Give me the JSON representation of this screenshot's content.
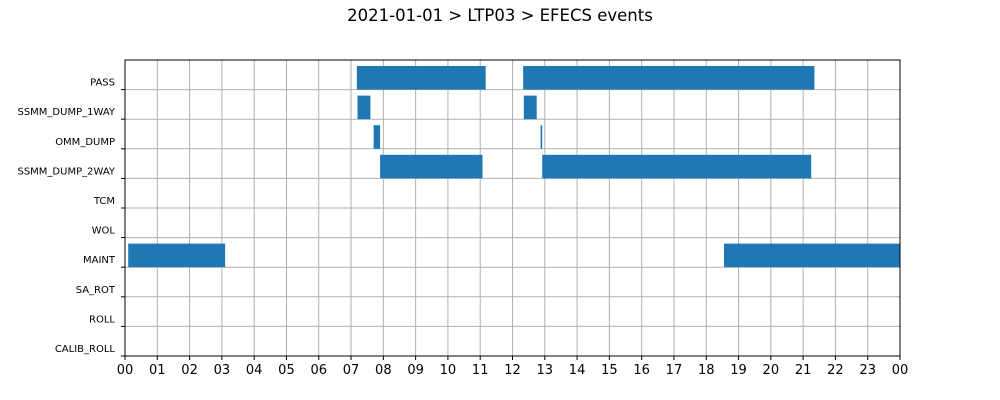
{
  "chart_data": {
    "type": "bar",
    "orientation": "horizontal-timeline",
    "title": "2021-01-01 > LTP03 > EFECS events",
    "xlabel": "",
    "ylabel": "",
    "xlim": [
      0,
      24
    ],
    "x_tick_labels": [
      "00",
      "01",
      "02",
      "03",
      "04",
      "05",
      "06",
      "07",
      "08",
      "09",
      "10",
      "11",
      "12",
      "13",
      "14",
      "15",
      "16",
      "17",
      "18",
      "19",
      "20",
      "21",
      "22",
      "23",
      "00"
    ],
    "categories": [
      "PASS",
      "SSMM_DUMP_1WAY",
      "OMM_DUMP",
      "SSMM_DUMP_2WAY",
      "TCM",
      "WOL",
      "MAINT",
      "SA_ROT",
      "ROLL",
      "CALIB_ROLL"
    ],
    "grid": true,
    "bar_color": "#1f77b4",
    "events": [
      {
        "category": "PASS",
        "start": 7.18,
        "end": 11.17
      },
      {
        "category": "PASS",
        "start": 12.33,
        "end": 21.35
      },
      {
        "category": "SSMM_DUMP_1WAY",
        "start": 7.2,
        "end": 7.6
      },
      {
        "category": "SSMM_DUMP_1WAY",
        "start": 12.35,
        "end": 12.75
      },
      {
        "category": "OMM_DUMP",
        "start": 7.7,
        "end": 7.9
      },
      {
        "category": "OMM_DUMP",
        "start": 12.87,
        "end": 12.92
      },
      {
        "category": "SSMM_DUMP_2WAY",
        "start": 7.9,
        "end": 11.07
      },
      {
        "category": "SSMM_DUMP_2WAY",
        "start": 12.92,
        "end": 21.25
      },
      {
        "category": "MAINT",
        "start": 0.1,
        "end": 3.1
      },
      {
        "category": "MAINT",
        "start": 18.55,
        "end": 24
      }
    ]
  }
}
